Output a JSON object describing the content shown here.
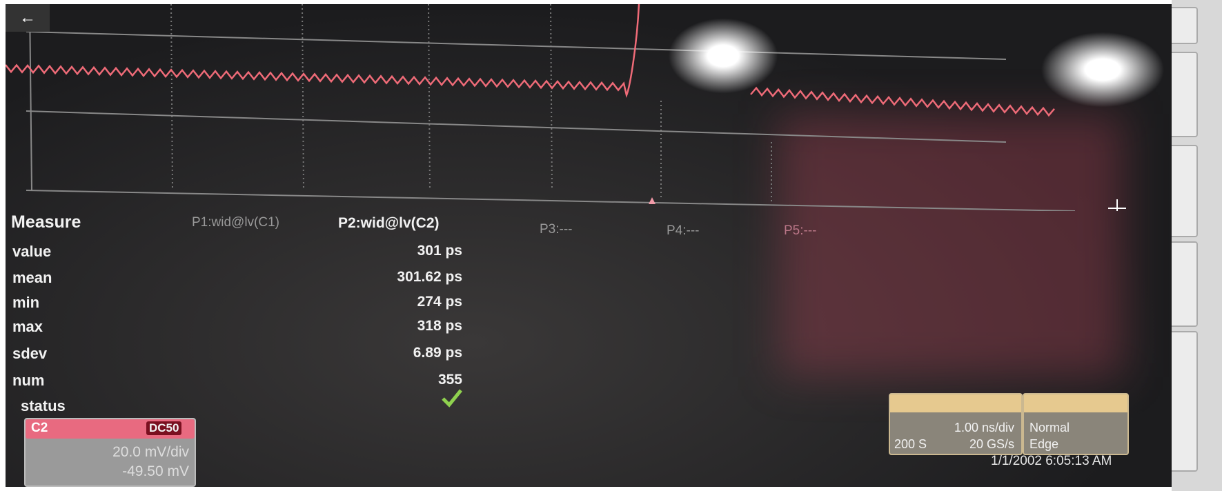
{
  "back_button": {
    "icon": "←"
  },
  "measure": {
    "title": "Measure",
    "headers": [
      "P1:wid@lv(C1)",
      "P2:wid@lv(C2)",
      "P3:---",
      "P4:---",
      "P5:---"
    ],
    "rows": [
      {
        "label": "value",
        "value": "301 ps"
      },
      {
        "label": "mean",
        "value": "301.62 ps"
      },
      {
        "label": "min",
        "value": "274 ps"
      },
      {
        "label": "max",
        "value": "318 ps"
      },
      {
        "label": "sdev",
        "value": "6.89 ps"
      },
      {
        "label": "num",
        "value": "355"
      },
      {
        "label": "status"
      }
    ]
  },
  "channel": {
    "name": "C2",
    "coupling": "DC50",
    "scale": "20.0 mV/div",
    "offset": "-49.50 mV"
  },
  "timebase": {
    "time_per_div": "1.00 ns/div",
    "points": "200 S",
    "sample_rate": "20 GS/s"
  },
  "trigger": {
    "mode": "Normal",
    "type": "Edge"
  },
  "timestamp": "1/1/2002 6:05:13 AM"
}
